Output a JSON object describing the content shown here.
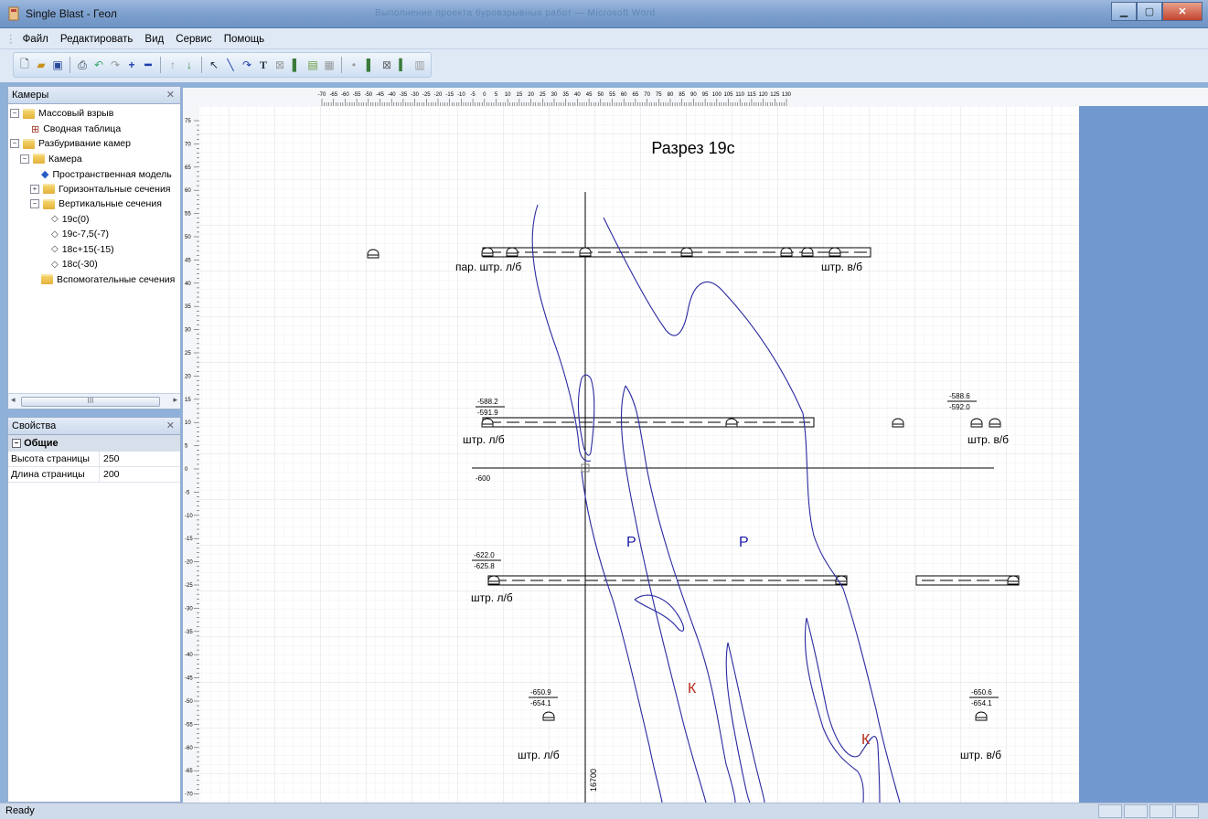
{
  "window": {
    "title": "Single Blast - Геол",
    "background_doc_title": "Выполнение проекта буровзрывных работ — Microsoft Word"
  },
  "menu": [
    "Файл",
    "Редактировать",
    "Вид",
    "Сервис",
    "Помощь"
  ],
  "toolbar_icons": [
    "new-icon",
    "open-icon",
    "save-icon",
    "print-icon",
    "undo-icon",
    "redo-icon",
    "zoom-in-icon",
    "zoom-out-icon",
    "arrow-up-icon",
    "arrow-down-icon",
    "select-icon",
    "line-icon",
    "polyline-icon",
    "text-icon",
    "hole-icon",
    "charge-icon",
    "image-icon",
    "fill-icon",
    "point-icon",
    "section-icon",
    "grid-icon",
    "stemming-icon",
    "layer-icon"
  ],
  "cameras_panel": {
    "title": "Камеры",
    "tree": [
      {
        "label": "Массовый взрыв",
        "level": 0,
        "expander": "−",
        "icon": "folder-icon"
      },
      {
        "label": "Сводная таблица",
        "level": 1,
        "icon": "table-icon"
      },
      {
        "label": "Разбуривание камер",
        "level": 0,
        "expander": "−",
        "icon": "folder-icon"
      },
      {
        "label": "Камера",
        "level": 1,
        "expander": "−",
        "icon": "folder-icon"
      },
      {
        "label": "Пространственная модель",
        "level": 2,
        "icon": "model-icon"
      },
      {
        "label": "Горизонтальные сечения",
        "level": 2,
        "expander": "+",
        "icon": "folder-icon"
      },
      {
        "label": "Вертикальные сечения",
        "level": 2,
        "expander": "−",
        "icon": "folder-icon"
      },
      {
        "label": "19с(0)",
        "level": 3,
        "icon": "section-icon"
      },
      {
        "label": "19с-7,5(-7)",
        "level": 3,
        "icon": "section-icon"
      },
      {
        "label": "18с+15(-15)",
        "level": 3,
        "icon": "section-icon"
      },
      {
        "label": "18с(-30)",
        "level": 3,
        "icon": "section-icon"
      },
      {
        "label": "Вспомогательные сечения",
        "level": 2,
        "icon": "folder-icon"
      }
    ],
    "scroll_grip": "III"
  },
  "properties_panel": {
    "title": "Свойства",
    "category": "Общие",
    "rows": [
      {
        "key": "Высота страницы",
        "value": "250"
      },
      {
        "key": "Длина страницы",
        "value": "200"
      }
    ]
  },
  "ruler": {
    "top": [
      "-70",
      "-65",
      "-60",
      "-55",
      "-50",
      "-45",
      "-40",
      "-35",
      "-30",
      "-25",
      "-20",
      "-15",
      "-10",
      "-5",
      "0",
      "5",
      "10",
      "15",
      "20",
      "25",
      "30",
      "35",
      "40",
      "45",
      "50",
      "55",
      "60",
      "65",
      "70",
      "75",
      "80",
      "85",
      "90",
      "95",
      "100",
      "105",
      "110",
      "115",
      "120",
      "125",
      "130"
    ],
    "left": [
      "75",
      "70",
      "65",
      "60",
      "55",
      "50",
      "45",
      "40",
      "35",
      "30",
      "25",
      "20",
      "15",
      "10",
      "5",
      "0",
      "-5",
      "-10",
      "-15",
      "-20",
      "-25",
      "-30",
      "-35",
      "-40",
      "-45",
      "-50",
      "-55",
      "-60",
      "-65",
      "-70"
    ]
  },
  "drawing": {
    "title": "Разрез 19с",
    "labels": {
      "par_l": "пар. штр. л/б",
      "shtr_vb_1": "штр. в/б",
      "shtr_lb_2": "штр. л/б",
      "shtr_vb_2": "штр. в/б",
      "shtr_lb_3": "штр. л/б",
      "shtr_lb_4": "штр. л/б",
      "shtr_vb_4": "штр. в/б",
      "level_600": "-600",
      "coord_x": "16700",
      "p1": "Р",
      "p2": "Р",
      "k1": "К",
      "k2": "К"
    },
    "fractions": {
      "f1": {
        "top": "-588.2",
        "bottom": "-591.9"
      },
      "f2": {
        "top": "-588.6",
        "bottom": "-592.0"
      },
      "f3": {
        "top": "-622.0",
        "bottom": "-625.8"
      },
      "f4": {
        "top": "-650.9",
        "bottom": "-654.1"
      },
      "f5": {
        "top": "-650.6",
        "bottom": "-654.1"
      }
    },
    "colors": {
      "geology": "#2a2aa0",
      "p_label": "#1a1aa8",
      "k_label": "#b52a1a"
    }
  },
  "status": {
    "text": "Ready"
  }
}
